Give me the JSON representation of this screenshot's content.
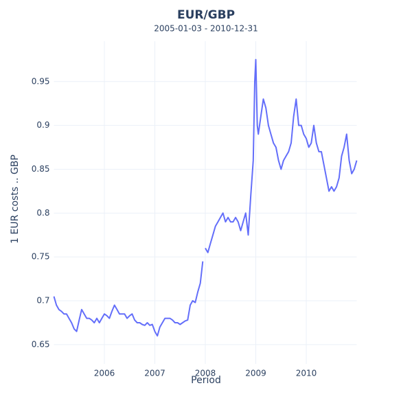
{
  "chart_data": {
    "type": "line",
    "title": "EUR/GBP",
    "subtitle": "2005-01-03 - 2010-12-31",
    "x_label": "Period",
    "y_label": "1 EUR costs .. GBP",
    "xlim": [
      2005,
      2011
    ],
    "xticks": [
      2006,
      2007,
      2008,
      2009,
      2010
    ],
    "ylim": [
      0.628,
      0.996
    ],
    "yticks": [
      0.65,
      0.7,
      0.75,
      0.8,
      0.85,
      0.9,
      0.95
    ],
    "grid": true,
    "x": [
      2005.0,
      2005.05,
      2005.1,
      2005.15,
      2005.2,
      2005.25,
      2005.3,
      2005.35,
      2005.4,
      2005.45,
      2005.5,
      2005.55,
      2005.6,
      2005.65,
      2005.7,
      2005.75,
      2005.8,
      2005.85,
      2005.9,
      2005.95,
      2006.0,
      2006.05,
      2006.1,
      2006.15,
      2006.2,
      2006.25,
      2006.3,
      2006.35,
      2006.4,
      2006.45,
      2006.5,
      2006.55,
      2006.6,
      2006.65,
      2006.7,
      2006.75,
      2006.8,
      2006.85,
      2006.9,
      2006.95,
      2007.0,
      2007.05,
      2007.1,
      2007.15,
      2007.2,
      2007.25,
      2007.3,
      2007.35,
      2007.4,
      2007.45,
      2007.5,
      2007.55,
      2007.6,
      2007.65,
      2007.7,
      2007.75,
      2007.8,
      2007.85,
      2007.9,
      2007.95,
      2007.98,
      2008.0,
      2008.05,
      2008.1,
      2008.15,
      2008.2,
      2008.25,
      2008.3,
      2008.35,
      2008.4,
      2008.45,
      2008.5,
      2008.55,
      2008.6,
      2008.65,
      2008.7,
      2008.75,
      2008.8,
      2008.85,
      2008.9,
      2008.95,
      2008.98,
      2009.0,
      2009.03,
      2009.05,
      2009.1,
      2009.15,
      2009.2,
      2009.25,
      2009.3,
      2009.35,
      2009.4,
      2009.45,
      2009.5,
      2009.55,
      2009.6,
      2009.65,
      2009.7,
      2009.75,
      2009.8,
      2009.85,
      2009.9,
      2009.95,
      2010.0,
      2010.05,
      2010.1,
      2010.15,
      2010.2,
      2010.25,
      2010.3,
      2010.35,
      2010.4,
      2010.45,
      2010.5,
      2010.55,
      2010.6,
      2010.65,
      2010.7,
      2010.75,
      2010.8,
      2010.85,
      2010.9,
      2010.95,
      2011.0
    ],
    "series": [
      {
        "color": "#636efa",
        "values": [
          0.705,
          0.695,
          0.69,
          0.688,
          0.685,
          0.685,
          0.68,
          0.675,
          0.668,
          0.665,
          0.678,
          0.69,
          0.685,
          0.68,
          0.68,
          0.678,
          0.675,
          0.68,
          0.675,
          0.68,
          0.685,
          0.683,
          0.68,
          0.688,
          0.695,
          0.69,
          0.685,
          0.685,
          0.685,
          0.68,
          0.683,
          0.685,
          0.678,
          0.675,
          0.675,
          0.673,
          0.672,
          0.675,
          0.672,
          0.673,
          0.665,
          0.66,
          0.67,
          0.675,
          0.68,
          0.68,
          0.68,
          0.678,
          0.675,
          0.675,
          0.673,
          0.675,
          0.677,
          0.678,
          0.695,
          0.7,
          0.698,
          0.71,
          0.72,
          0.745,
          null,
          0.76,
          0.755,
          0.765,
          0.775,
          0.785,
          0.79,
          0.795,
          0.8,
          0.79,
          0.795,
          0.79,
          0.79,
          0.795,
          0.79,
          0.78,
          0.79,
          0.8,
          0.775,
          0.82,
          0.86,
          0.95,
          0.975,
          0.9,
          0.89,
          0.91,
          0.93,
          0.92,
          0.9,
          0.89,
          0.88,
          0.875,
          0.86,
          0.85,
          0.86,
          0.865,
          0.87,
          0.88,
          0.91,
          0.93,
          0.9,
          0.9,
          0.89,
          0.885,
          0.875,
          0.88,
          0.9,
          0.88,
          0.87,
          0.87,
          0.855,
          0.84,
          0.825,
          0.83,
          0.825,
          0.83,
          0.84,
          0.865,
          0.875,
          0.89,
          0.86,
          0.845,
          0.85,
          0.86
        ]
      }
    ]
  }
}
